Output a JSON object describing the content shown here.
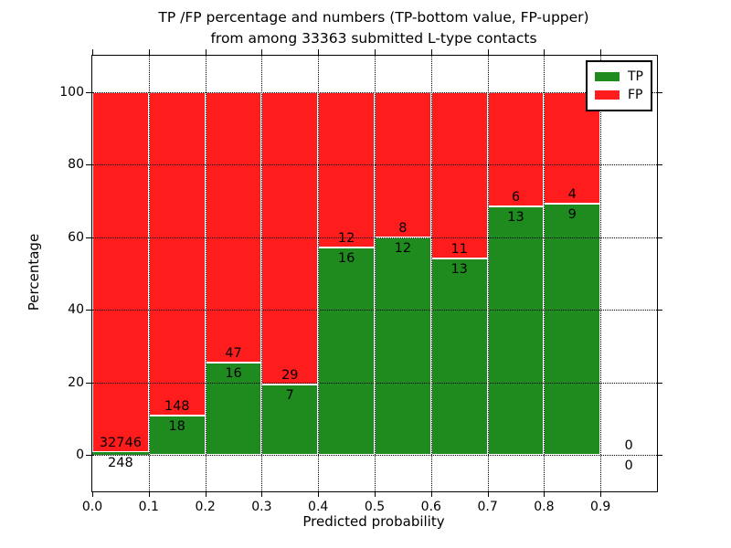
{
  "title": {
    "line1": "TP /FP percentage and numbers (TP-bottom value, FP-upper)",
    "line2": "from among 33363 submitted L-type contacts"
  },
  "axes": {
    "xlabel": "Predicted probability",
    "ylabel": "Percentage"
  },
  "legend": {
    "items": [
      {
        "label": "TP",
        "color": "#1f8b1f"
      },
      {
        "label": "FP",
        "color": "#ff1c1c"
      }
    ]
  },
  "chart_data": {
    "type": "bar",
    "stacked": true,
    "normalized_to_percent": true,
    "title": "TP /FP percentage and numbers (TP-bottom value, FP-upper) from among 33363 submitted L-type contacts",
    "xlabel": "Predicted probability",
    "ylabel": "Percentage",
    "xlim": [
      0.0,
      1.0
    ],
    "ylim": [
      -10,
      110
    ],
    "xticks": [
      "0.0",
      "0.1",
      "0.2",
      "0.3",
      "0.4",
      "0.5",
      "0.6",
      "0.7",
      "0.8",
      "0.9"
    ],
    "yticks": [
      0,
      20,
      40,
      60,
      80,
      100
    ],
    "grid": true,
    "grid_style": "dotted",
    "legend_position": "upper right",
    "total_contacts": 33363,
    "bin_width": 0.1,
    "series": [
      {
        "name": "TP",
        "color": "#1f8b1f",
        "position": "bottom"
      },
      {
        "name": "FP",
        "color": "#ff1c1c",
        "position": "top"
      }
    ],
    "bins": [
      {
        "range": [
          0.0,
          0.1
        ],
        "tp": 248,
        "fp": 32746,
        "tp_pct": 0.75
      },
      {
        "range": [
          0.1,
          0.2
        ],
        "tp": 18,
        "fp": 148,
        "tp_pct": 10.84
      },
      {
        "range": [
          0.2,
          0.3
        ],
        "tp": 16,
        "fp": 47,
        "tp_pct": 25.4
      },
      {
        "range": [
          0.3,
          0.4
        ],
        "tp": 7,
        "fp": 29,
        "tp_pct": 19.44
      },
      {
        "range": [
          0.4,
          0.5
        ],
        "tp": 16,
        "fp": 12,
        "tp_pct": 57.14
      },
      {
        "range": [
          0.5,
          0.6
        ],
        "tp": 12,
        "fp": 8,
        "tp_pct": 60.0
      },
      {
        "range": [
          0.6,
          0.7
        ],
        "tp": 13,
        "fp": 11,
        "tp_pct": 54.17
      },
      {
        "range": [
          0.7,
          0.8
        ],
        "tp": 13,
        "fp": 6,
        "tp_pct": 68.42
      },
      {
        "range": [
          0.8,
          0.9
        ],
        "tp": 9,
        "fp": 4,
        "tp_pct": 69.23
      },
      {
        "range": [
          0.9,
          1.0
        ],
        "tp": 0,
        "fp": 0,
        "tp_pct": null
      }
    ]
  }
}
